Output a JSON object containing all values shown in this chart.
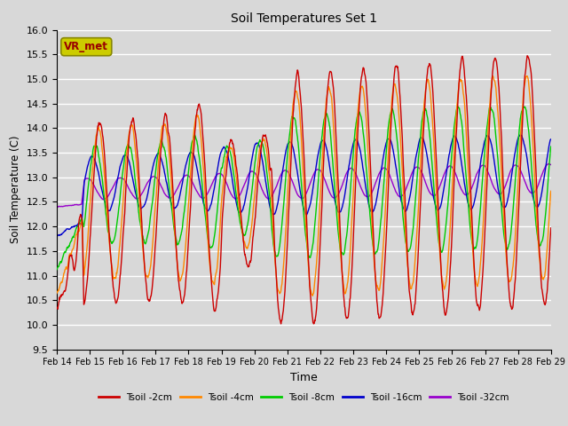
{
  "title": "Soil Temperatures Set 1",
  "xlabel": "Time",
  "ylabel": "Soil Temperature (C)",
  "ylim": [
    9.5,
    16.0
  ],
  "yticks": [
    9.5,
    10.0,
    10.5,
    11.0,
    11.5,
    12.0,
    12.5,
    13.0,
    13.5,
    14.0,
    14.5,
    15.0,
    15.5,
    16.0
  ],
  "series_colors": [
    "#cc0000",
    "#ff8800",
    "#00cc00",
    "#0000cc",
    "#9900cc"
  ],
  "series_labels": [
    "Tsoil -2cm",
    "Tsoil -4cm",
    "Tsoil -8cm",
    "Tsoil -16cm",
    "Tsoil -32cm"
  ],
  "legend_label": "VR_met",
  "legend_box_facecolor": "#cccc00",
  "legend_box_edgecolor": "#888800",
  "legend_text_color": "#990000",
  "bg_color": "#d8d8d8",
  "plot_bg_color": "#d8d8d8",
  "grid_color": "#ffffff",
  "x_start": 14,
  "x_end": 29,
  "xtick_labels": [
    "Feb 14",
    "Feb 15",
    "Feb 16",
    "Feb 17",
    "Feb 18",
    "Feb 19",
    "Feb 20",
    "Feb 21",
    "Feb 22",
    "Feb 23",
    "Feb 24",
    "Feb 25",
    "Feb 26",
    "Feb 27",
    "Feb 28",
    "Feb 29"
  ],
  "xtick_positions": [
    14,
    15,
    16,
    17,
    18,
    19,
    20,
    21,
    22,
    23,
    24,
    25,
    26,
    27,
    28,
    29
  ]
}
